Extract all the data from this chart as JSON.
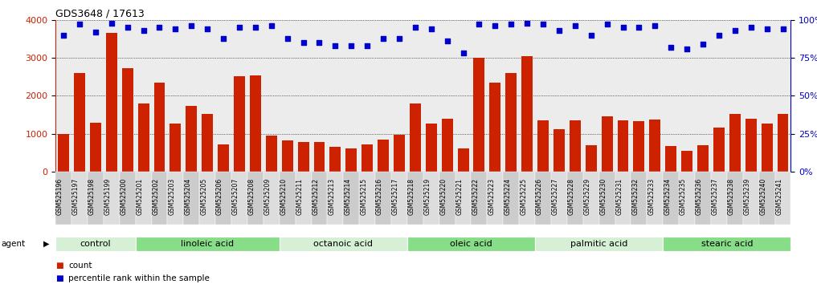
{
  "title": "GDS3648 / 17613",
  "samples": [
    "GSM525196",
    "GSM525197",
    "GSM525198",
    "GSM525199",
    "GSM525200",
    "GSM525201",
    "GSM525202",
    "GSM525203",
    "GSM525204",
    "GSM525205",
    "GSM525206",
    "GSM525207",
    "GSM525208",
    "GSM525209",
    "GSM525210",
    "GSM525211",
    "GSM525212",
    "GSM525213",
    "GSM525214",
    "GSM525215",
    "GSM525216",
    "GSM525217",
    "GSM525218",
    "GSM525219",
    "GSM525220",
    "GSM525221",
    "GSM525222",
    "GSM525223",
    "GSM525224",
    "GSM525225",
    "GSM525226",
    "GSM525227",
    "GSM525228",
    "GSM525229",
    "GSM525230",
    "GSM525231",
    "GSM525232",
    "GSM525233",
    "GSM525234",
    "GSM525235",
    "GSM525236",
    "GSM525237",
    "GSM525238",
    "GSM525239",
    "GSM525240",
    "GSM525241"
  ],
  "counts": [
    1000,
    2600,
    1300,
    3650,
    2720,
    1800,
    2350,
    1270,
    1730,
    1520,
    720,
    2520,
    2530,
    950,
    820,
    780,
    780,
    660,
    610,
    730,
    850,
    980,
    1800,
    1270,
    1400,
    620,
    3000,
    2350,
    2600,
    3050,
    1360,
    1120,
    1360,
    700,
    1470,
    1360,
    1340,
    1380,
    680,
    560,
    700,
    1160,
    1520,
    1390,
    1270,
    1530
  ],
  "percentile_ranks": [
    90,
    97,
    92,
    98,
    95,
    93,
    95,
    94,
    96,
    94,
    88,
    95,
    95,
    96,
    88,
    85,
    85,
    83,
    83,
    83,
    88,
    88,
    95,
    94,
    86,
    78,
    97,
    96,
    97,
    98,
    97,
    93,
    96,
    90,
    97,
    95,
    95,
    96,
    82,
    81,
    84,
    90,
    93,
    95,
    94,
    94
  ],
  "groups": [
    {
      "label": "control",
      "start": 0,
      "end": 5
    },
    {
      "label": "linoleic acid",
      "start": 5,
      "end": 14
    },
    {
      "label": "octanoic acid",
      "start": 14,
      "end": 22
    },
    {
      "label": "oleic acid",
      "start": 22,
      "end": 30
    },
    {
      "label": "palmitic acid",
      "start": 30,
      "end": 38
    },
    {
      "label": "stearic acid",
      "start": 38,
      "end": 46
    }
  ],
  "bar_color": "#cc2200",
  "dot_color": "#0000cc",
  "ylim_left": [
    0,
    4000
  ],
  "ylim_right": [
    0,
    100
  ],
  "yticks_left": [
    0,
    1000,
    2000,
    3000,
    4000
  ],
  "yticks_right": [
    0,
    25,
    50,
    75,
    100
  ],
  "title_fontsize": 9,
  "tick_fontsize": 5.5,
  "group_fontsize": 8,
  "legend_fontsize": 7.5,
  "plot_bg": "#ececec",
  "xtick_bg": "#d8d8d8",
  "separator_color": "#555555",
  "group_colors": [
    "#d6f0d6",
    "#88dd88"
  ],
  "agent_label": "agent"
}
